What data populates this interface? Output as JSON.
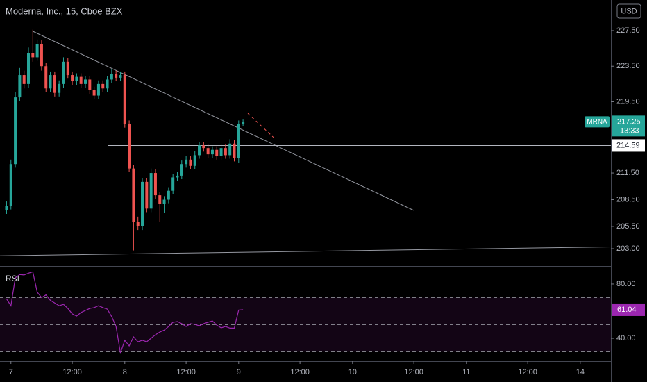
{
  "chart_data": {
    "type": "candlestick",
    "title": "Moderna, Inc., 15, Cboe BZX",
    "currency": "USD",
    "symbol": "MRNA",
    "countdown": "13:33",
    "up_color": "#26a69a",
    "down_color": "#ef5350",
    "x": [
      -1,
      0,
      1,
      2,
      3,
      4,
      5,
      6,
      7,
      8,
      9,
      10,
      11,
      12,
      13,
      14,
      15,
      16,
      17,
      18,
      19,
      20,
      21,
      22,
      23,
      24,
      25,
      26,
      27,
      28,
      29,
      30,
      31,
      32,
      33,
      34,
      35,
      36,
      37,
      38,
      39,
      40,
      41,
      42,
      43,
      44,
      45,
      46,
      47,
      48,
      49,
      50,
      51,
      52,
      53
    ],
    "open": [
      207.3,
      207.8,
      212.5,
      220.0,
      222.5,
      221.5,
      225.0,
      224.5,
      226.0,
      223.5,
      221.0,
      222.5,
      220.5,
      221.5,
      224.0,
      222.5,
      221.8,
      222.3,
      221.5,
      222.0,
      220.8,
      220.2,
      221.5,
      221.0,
      222.0,
      222.6,
      222.2,
      222.5,
      217.0,
      212.0,
      206.0,
      205.5,
      210.5,
      207.5,
      211.5,
      209.0,
      208.0,
      208.5,
      209.5,
      211.0,
      211.2,
      212.5,
      213.0,
      212.3,
      213.5,
      214.6,
      214.3,
      213.6,
      214.1,
      213.4,
      214.3,
      213.5,
      214.8,
      213.2,
      217.0
    ],
    "high": [
      208.3,
      213.0,
      220.6,
      223.3,
      223.0,
      225.6,
      227.6,
      226.5,
      226.4,
      223.9,
      222.9,
      222.9,
      221.9,
      224.5,
      224.4,
      222.9,
      222.7,
      222.7,
      222.4,
      222.4,
      221.2,
      221.9,
      221.9,
      222.4,
      223.2,
      223.0,
      222.9,
      222.9,
      217.4,
      212.4,
      206.6,
      210.9,
      210.9,
      212.0,
      211.9,
      209.4,
      208.9,
      209.9,
      211.4,
      211.6,
      212.9,
      213.4,
      213.4,
      214.0,
      215.0,
      215.0,
      214.7,
      214.5,
      214.5,
      214.7,
      214.7,
      215.3,
      215.2,
      217.4,
      217.5
    ],
    "low": [
      206.9,
      207.4,
      212.1,
      219.6,
      221.0,
      221.1,
      224.0,
      224.1,
      223.0,
      220.6,
      220.6,
      220.1,
      220.1,
      221.1,
      222.1,
      221.4,
      221.4,
      221.1,
      221.1,
      220.4,
      219.8,
      219.8,
      220.6,
      220.6,
      221.6,
      221.8,
      221.8,
      216.6,
      211.6,
      202.8,
      205.1,
      205.1,
      207.1,
      207.1,
      208.6,
      206.0,
      207.0,
      208.1,
      209.1,
      210.6,
      210.8,
      212.1,
      211.9,
      211.9,
      213.1,
      213.9,
      213.2,
      213.2,
      213.0,
      213.0,
      213.1,
      213.1,
      212.8,
      212.6,
      216.8
    ],
    "close": [
      207.8,
      212.5,
      220.0,
      222.5,
      221.5,
      225.0,
      224.5,
      226.0,
      223.5,
      221.0,
      222.5,
      220.5,
      221.5,
      224.0,
      222.5,
      221.8,
      222.3,
      221.5,
      222.0,
      220.8,
      220.2,
      221.5,
      221.0,
      222.0,
      222.6,
      222.2,
      222.5,
      217.0,
      212.0,
      206.0,
      205.5,
      210.5,
      207.5,
      211.5,
      209.0,
      208.0,
      208.5,
      209.5,
      211.0,
      211.2,
      212.5,
      213.0,
      212.3,
      213.5,
      214.6,
      214.3,
      213.6,
      214.1,
      213.4,
      214.3,
      213.5,
      214.8,
      213.2,
      217.0,
      217.25
    ],
    "xlim": [
      -2.5,
      137
    ],
    "xticks": [
      {
        "value": 0,
        "label": "7"
      },
      {
        "value": 14,
        "label": "12:00"
      },
      {
        "value": 26,
        "label": "8"
      },
      {
        "value": 40,
        "label": "12:00"
      },
      {
        "value": 52,
        "label": "9"
      },
      {
        "value": 66,
        "label": "12:00"
      },
      {
        "value": 78,
        "label": "10"
      },
      {
        "value": 92,
        "label": "12:00"
      },
      {
        "value": 104,
        "label": "11"
      },
      {
        "value": 118,
        "label": "12:00"
      },
      {
        "value": 130,
        "label": "14"
      }
    ],
    "ylim": [
      201.05,
      230.93
    ],
    "yticks": [
      {
        "value": 227.5,
        "label": "227.50"
      },
      {
        "value": 223.5,
        "label": "223.50"
      },
      {
        "value": 219.5,
        "label": "219.50"
      },
      {
        "value": 211.5,
        "label": "211.50"
      },
      {
        "value": 208.5,
        "label": "208.50"
      },
      {
        "value": 205.5,
        "label": "205.50"
      },
      {
        "value": 203,
        "label": "203.00"
      }
    ],
    "hline": {
      "value": 214.59,
      "x_start": 22.1
    },
    "trendlines": [
      {
        "x": [
          5.1,
          91.95
        ],
        "y": [
          227.4,
          207.3
        ],
        "color": "#9598a1",
        "dashed": false
      },
      {
        "x": [
          -2.5,
          137
        ],
        "y": [
          202.2,
          203.2
        ],
        "color": "#9598a1",
        "dashed": false
      },
      {
        "x": [
          54.1,
          60.4
        ],
        "y": [
          218.2,
          215.3
        ],
        "color": "#ef5350",
        "dashed": true
      }
    ],
    "rsi": {
      "name": "RSI",
      "color": "#9c27b0",
      "values": [
        69,
        64,
        84.6,
        87,
        86.7,
        88,
        89,
        74,
        70,
        72,
        68,
        66,
        64,
        65,
        62,
        58,
        56.4,
        59,
        60.5,
        62,
        62.6,
        64,
        62.6,
        61.5,
        56,
        48.7,
        29.2,
        38.5,
        34.4,
        41,
        37.4,
        38.5,
        37.4,
        40,
        42.6,
        44.6,
        46,
        48.7,
        51.8,
        52.3,
        50.8,
        48.7,
        50.8,
        50.3,
        49.2,
        50.8,
        51.8,
        52.8,
        49.7,
        47.7,
        48.7,
        47.5,
        47.5,
        60.8,
        61.04
      ],
      "ylim": [
        23.1,
        93.3
      ],
      "yticks": [
        {
          "value": 80,
          "label": "80.00"
        },
        {
          "value": 40,
          "label": "40.00"
        }
      ],
      "bands": [
        30,
        50,
        70
      ]
    }
  }
}
